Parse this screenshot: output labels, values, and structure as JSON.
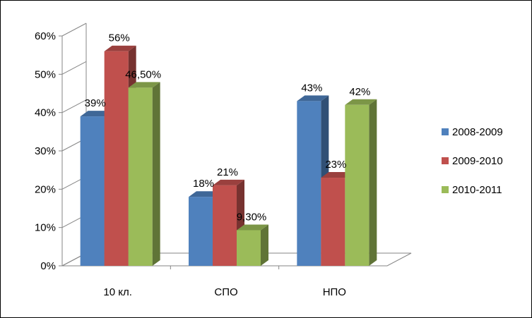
{
  "chart_data": {
    "type": "bar",
    "categories": [
      "10 кл.",
      "СПО",
      "НПО"
    ],
    "series": [
      {
        "name": "2008-2009",
        "values": [
          39,
          18,
          43
        ],
        "labels": [
          "39%",
          "18%",
          "43%"
        ],
        "color": "#4f81bd"
      },
      {
        "name": "2009-2010",
        "values": [
          56,
          21,
          23
        ],
        "labels": [
          "56%",
          "21%",
          "23%"
        ],
        "color": "#c0504d"
      },
      {
        "name": "2010-2011",
        "values": [
          46.5,
          9.3,
          42
        ],
        "labels": [
          "46,50%",
          "9,30%",
          "42%"
        ],
        "color": "#9bbb59"
      }
    ],
    "y_ticks": [
      "0%",
      "10%",
      "20%",
      "30%",
      "40%",
      "50%",
      "60%"
    ],
    "ylim": [
      0,
      60
    ],
    "legend_position": "right",
    "grid": false,
    "three_d": true
  }
}
